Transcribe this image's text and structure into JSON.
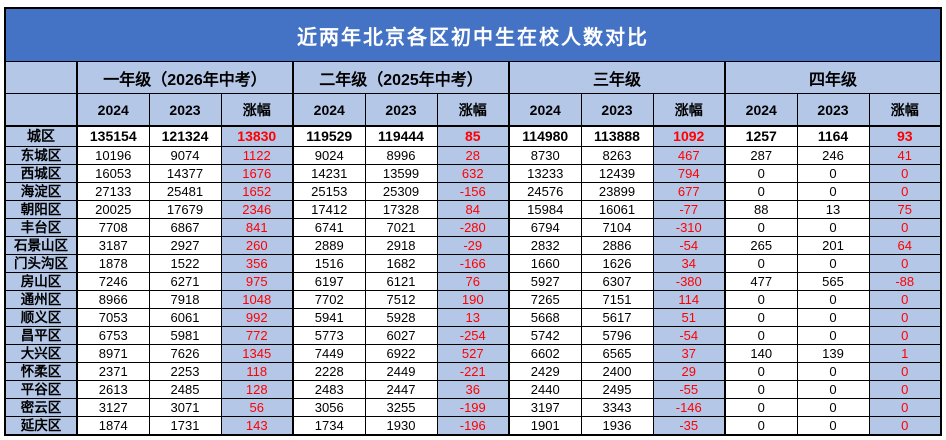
{
  "title": "近两年北京各区初中生在校人数对比",
  "colors": {
    "title_bg": "#4472C4",
    "title_text": "#FFFFFF",
    "header_band_bg": "#B4C7E7",
    "delta_text": "#FF0000",
    "grid": "#000000"
  },
  "table": {
    "groups": [
      {
        "label": "一年级（2026年中考）"
      },
      {
        "label": "二年级（2025年中考）"
      },
      {
        "label": "三年级"
      },
      {
        "label": "四年级"
      }
    ],
    "sub_headers": [
      "2024",
      "2023",
      "涨幅"
    ],
    "rows": [
      {
        "label": "城区",
        "bold": true,
        "values": [
          "135154",
          "121324",
          "13830",
          "119529",
          "119444",
          "85",
          "114980",
          "113888",
          "1092",
          "1257",
          "1164",
          "93"
        ]
      },
      {
        "label": "东城区",
        "bold": false,
        "values": [
          "10196",
          "9074",
          "1122",
          "9024",
          "8996",
          "28",
          "8730",
          "8263",
          "467",
          "287",
          "246",
          "41"
        ]
      },
      {
        "label": "西城区",
        "bold": false,
        "values": [
          "16053",
          "14377",
          "1676",
          "14231",
          "13599",
          "632",
          "13233",
          "12439",
          "794",
          "0",
          "0",
          "0"
        ]
      },
      {
        "label": "海淀区",
        "bold": false,
        "values": [
          "27133",
          "25481",
          "1652",
          "25153",
          "25309",
          "-156",
          "24576",
          "23899",
          "677",
          "0",
          "0",
          "0"
        ]
      },
      {
        "label": "朝阳区",
        "bold": false,
        "values": [
          "20025",
          "17679",
          "2346",
          "17412",
          "17328",
          "84",
          "15984",
          "16061",
          "-77",
          "88",
          "13",
          "75"
        ]
      },
      {
        "label": "丰台区",
        "bold": false,
        "values": [
          "7708",
          "6867",
          "841",
          "6741",
          "7021",
          "-280",
          "6794",
          "7104",
          "-310",
          "0",
          "0",
          "0"
        ]
      },
      {
        "label": "石景山区",
        "bold": false,
        "values": [
          "3187",
          "2927",
          "260",
          "2889",
          "2918",
          "-29",
          "2832",
          "2886",
          "-54",
          "265",
          "201",
          "64"
        ]
      },
      {
        "label": "门头沟区",
        "bold": false,
        "values": [
          "1878",
          "1522",
          "356",
          "1516",
          "1682",
          "-166",
          "1660",
          "1626",
          "34",
          "0",
          "0",
          "0"
        ]
      },
      {
        "label": "房山区",
        "bold": false,
        "values": [
          "7246",
          "6271",
          "975",
          "6197",
          "6121",
          "76",
          "5927",
          "6307",
          "-380",
          "477",
          "565",
          "-88"
        ]
      },
      {
        "label": "通州区",
        "bold": false,
        "values": [
          "8966",
          "7918",
          "1048",
          "7702",
          "7512",
          "190",
          "7265",
          "7151",
          "114",
          "0",
          "0",
          "0"
        ]
      },
      {
        "label": "顺义区",
        "bold": false,
        "values": [
          "7053",
          "6061",
          "992",
          "5941",
          "5928",
          "13",
          "5668",
          "5617",
          "51",
          "0",
          "0",
          "0"
        ]
      },
      {
        "label": "昌平区",
        "bold": false,
        "values": [
          "6753",
          "5981",
          "772",
          "5773",
          "6027",
          "-254",
          "5742",
          "5796",
          "-54",
          "0",
          "0",
          "0"
        ]
      },
      {
        "label": "大兴区",
        "bold": false,
        "values": [
          "8971",
          "7626",
          "1345",
          "7449",
          "6922",
          "527",
          "6602",
          "6565",
          "37",
          "140",
          "139",
          "1"
        ]
      },
      {
        "label": "怀柔区",
        "bold": false,
        "values": [
          "2371",
          "2253",
          "118",
          "2228",
          "2449",
          "-221",
          "2429",
          "2400",
          "29",
          "0",
          "0",
          "0"
        ]
      },
      {
        "label": "平谷区",
        "bold": false,
        "values": [
          "2613",
          "2485",
          "128",
          "2483",
          "2447",
          "36",
          "2440",
          "2495",
          "-55",
          "0",
          "0",
          "0"
        ]
      },
      {
        "label": "密云区",
        "bold": false,
        "values": [
          "3127",
          "3071",
          "56",
          "3056",
          "3255",
          "-199",
          "3197",
          "3343",
          "-146",
          "0",
          "0",
          "0"
        ]
      },
      {
        "label": "延庆区",
        "bold": false,
        "values": [
          "1874",
          "1731",
          "143",
          "1734",
          "1930",
          "-196",
          "1901",
          "1936",
          "-35",
          "0",
          "0",
          "0"
        ]
      }
    ]
  }
}
